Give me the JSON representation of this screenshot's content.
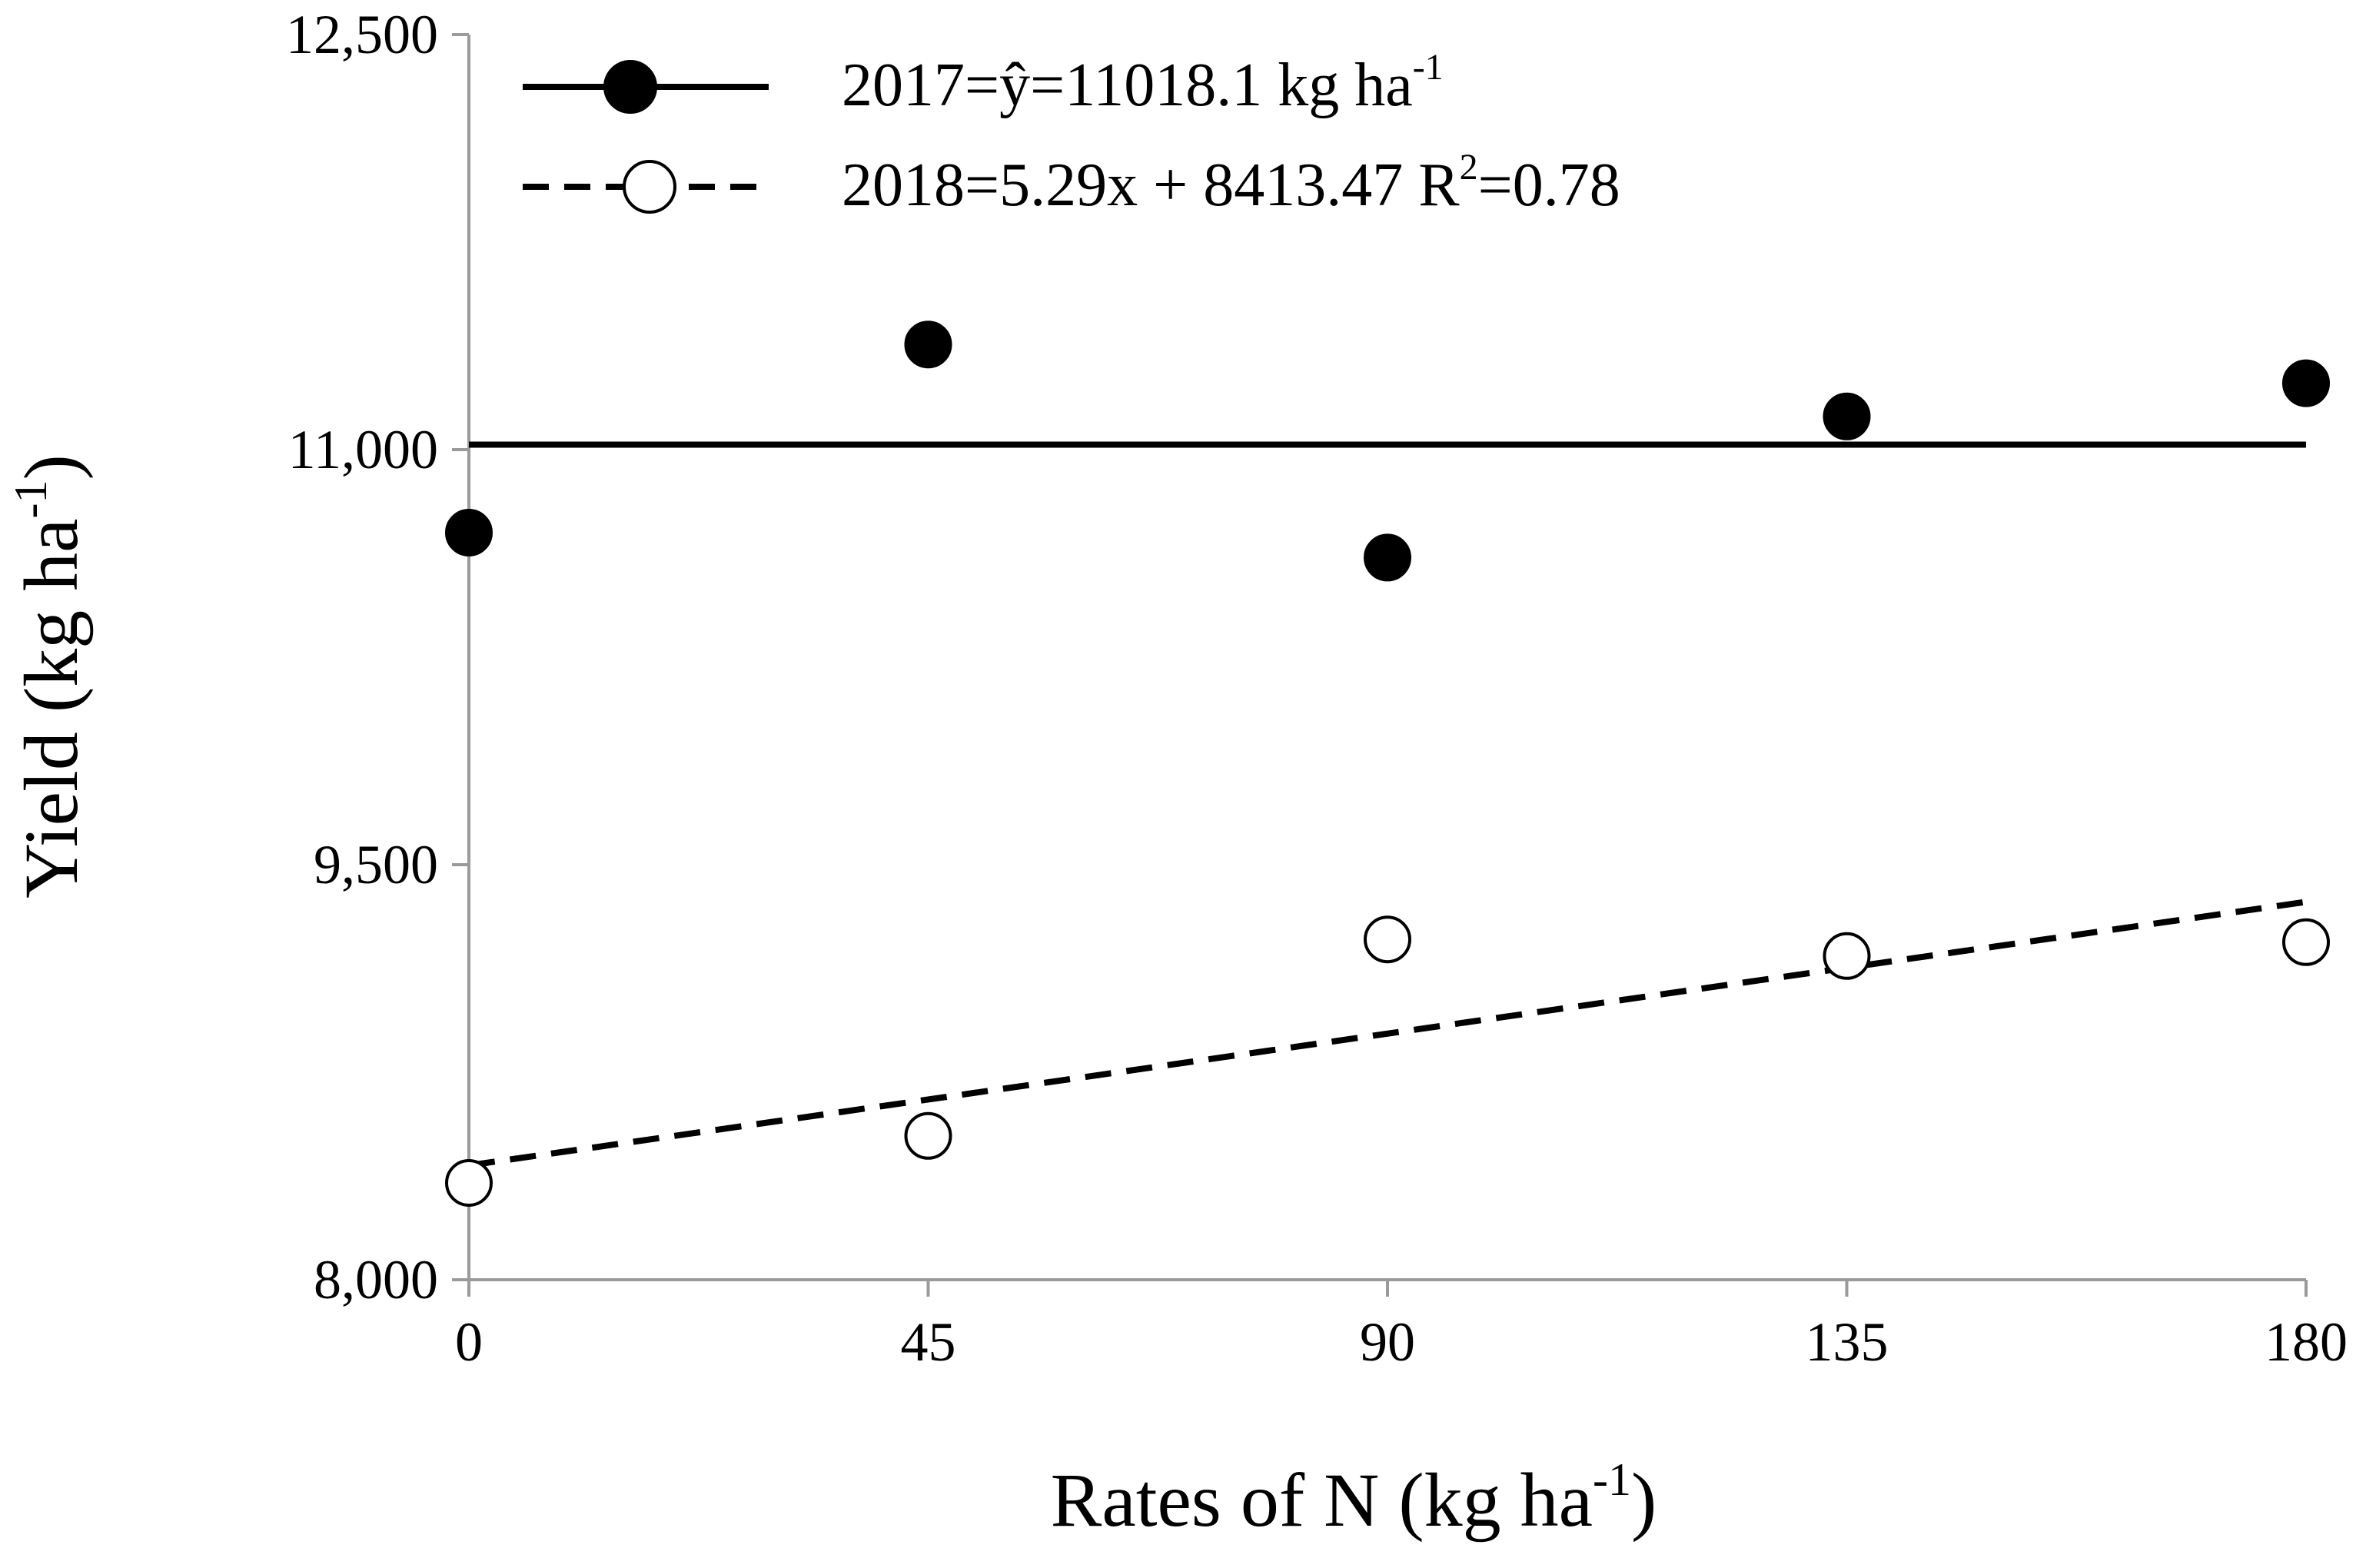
{
  "chart_data": {
    "type": "scatter",
    "title": "",
    "xlabel": "Rates of N (kg ha",
    "xlabel_sup": "-1",
    "xlabel_close": ")",
    "ylabel": "Yield (kg ha",
    "ylabel_sup": "-1",
    "ylabel_close": ")",
    "xlim": [
      0,
      180
    ],
    "ylim": [
      8000,
      12500
    ],
    "x_ticks": [
      0,
      45,
      90,
      135,
      180
    ],
    "x_tick_labels": [
      "0",
      "45",
      "90",
      "135",
      "180"
    ],
    "y_ticks": [
      8000,
      9500,
      11000,
      12500
    ],
    "y_tick_labels": [
      "8,000",
      "9,500",
      "11,000",
      "12,500"
    ],
    "grid": false,
    "legend_position": "top-left",
    "series": [
      {
        "name": "2017",
        "legend_text": "2017=ŷ=11018.1 kg ha",
        "legend_sup": "-1",
        "legend_suffix": "",
        "marker": "filled-circle",
        "line_style": "solid",
        "x": [
          0,
          45,
          90,
          135,
          180
        ],
        "y": [
          10700,
          11380,
          10610,
          11120,
          11240
        ],
        "fit": {
          "slope": 0,
          "intercept": 11018.1
        }
      },
      {
        "name": "2018",
        "legend_text": "2018=5.29x + 8413.47 R",
        "legend_sup": "2",
        "legend_suffix": "=0.78",
        "marker": "open-circle",
        "line_style": "dashed",
        "x": [
          0,
          45,
          90,
          135,
          180
        ],
        "y": [
          8350,
          8520,
          9230,
          9170,
          9220
        ],
        "fit": {
          "slope": 5.29,
          "intercept": 8413.47
        }
      }
    ]
  }
}
